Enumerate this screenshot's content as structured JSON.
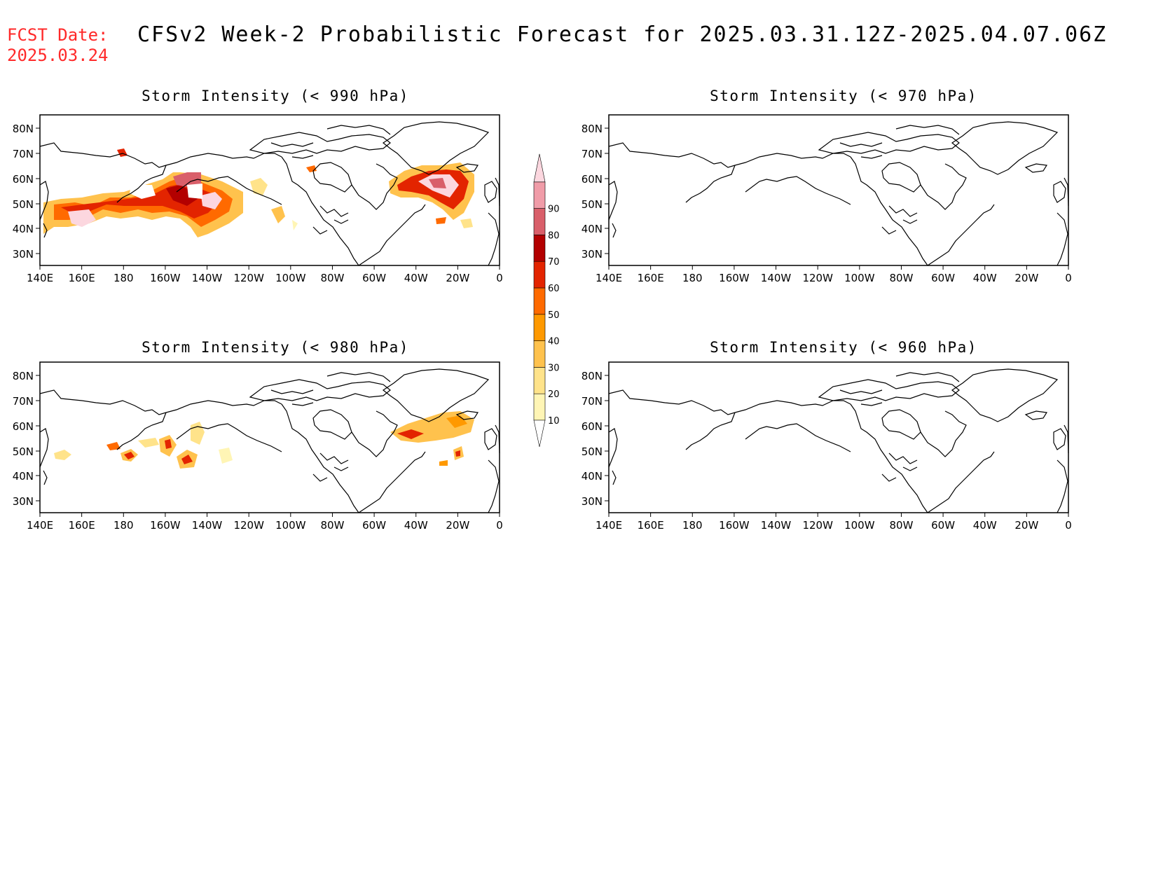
{
  "header": {
    "fcst_label": "FCST Date:",
    "fcst_date": "2025.03.24",
    "title": "CFSv2 Week-2 Probabilistic Forecast for 2025.03.31.12Z-2025.04.07.06Z"
  },
  "panels": [
    {
      "id": "p990",
      "title": "Storm Intensity (< 990 hPa)"
    },
    {
      "id": "p970",
      "title": "Storm Intensity (< 970 hPa)"
    },
    {
      "id": "p980",
      "title": "Storm Intensity (< 980 hPa)"
    },
    {
      "id": "p960",
      "title": "Storm Intensity (< 960 hPa)"
    }
  ],
  "axes": {
    "lat_labels": [
      "80N",
      "70N",
      "60N",
      "50N",
      "40N",
      "30N"
    ],
    "lon_labels": [
      "140E",
      "160E",
      "180",
      "160W",
      "140W",
      "120W",
      "100W",
      "80W",
      "60W",
      "40W",
      "20W",
      "0"
    ]
  },
  "colorbar": {
    "levels": [
      "10",
      "20",
      "30",
      "40",
      "50",
      "60",
      "70",
      "80",
      "90"
    ],
    "colors": [
      "#fff5b5",
      "#ffe38a",
      "#ffc24d",
      "#ff9900",
      "#ff6a00",
      "#e32400",
      "#b30000",
      "#d95f6a",
      "#f09ca8",
      "#fcd7df"
    ]
  }
}
